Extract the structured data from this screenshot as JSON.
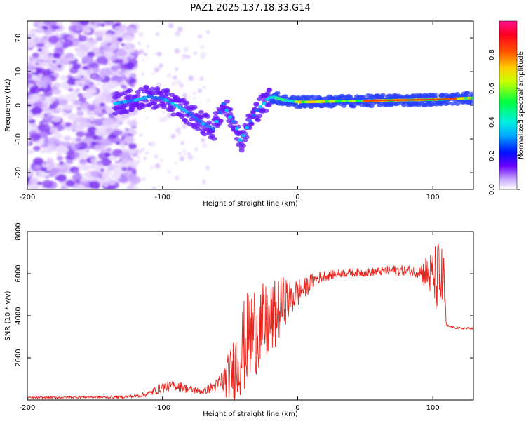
{
  "figure": {
    "title": "PAZ1.2025.137.18.33.G14",
    "colors": {
      "snr_line": "#e8241c",
      "axes": "#000000",
      "spectrogram_noise": "#8a3cf0",
      "spectrogram_signal": "#2e8bff"
    }
  },
  "chart_data": [
    {
      "type": "heatmap",
      "name": "spectrogram",
      "title": "PAZ1.2025.137.18.33.G14",
      "xlabel": "Height of straight line (km)",
      "ylabel": "Frequency (Hz)",
      "xlim": [
        -200,
        130
      ],
      "ylim": [
        -25,
        25
      ],
      "x_ticks": [
        -200,
        -100,
        0,
        100
      ],
      "y_ticks": [
        -20,
        -10,
        0,
        10,
        20
      ],
      "grid": false,
      "colorbar": {
        "label": "Normalized spectral amplitude",
        "range": [
          0,
          1
        ],
        "ticks": [
          "0.0",
          "0.2",
          "0.4",
          "0.6",
          "0.8"
        ],
        "colormap": [
          "#ffffff",
          "#b48cff",
          "#5a00ff",
          "#0000ff",
          "#00d0ff",
          "#00ff40",
          "#ffff00",
          "#ff8000",
          "#ff0000",
          "#ff0080"
        ]
      },
      "signal_track": {
        "x": [
          -135,
          -120,
          -110,
          -100,
          -90,
          -80,
          -70,
          -62,
          -55,
          -50,
          -46,
          -42,
          -38,
          -34,
          -30,
          -25,
          -22,
          -18,
          -10,
          0,
          10,
          30,
          50,
          70,
          90,
          100,
          110,
          120,
          130
        ],
        "frequency": [
          0.5,
          1.5,
          2.5,
          2.0,
          0.0,
          -2.5,
          -5.5,
          -7.0,
          0.5,
          -3.5,
          -5.5,
          -11.0,
          -7.0,
          -4.0,
          -1.5,
          0.5,
          2.0,
          2.5,
          1.5,
          1.0,
          1.0,
          1.2,
          1.3,
          1.5,
          1.6,
          1.7,
          1.8,
          2.0,
          2.2
        ]
      }
    },
    {
      "type": "line",
      "name": "snr",
      "xlabel": "Height of straight line (km)",
      "ylabel": "SNR (10 * v/v)",
      "xlim": [
        -200,
        130
      ],
      "ylim": [
        0,
        8000
      ],
      "x_ticks": [
        -200,
        -100,
        0,
        100
      ],
      "y_ticks": [
        2000,
        4000,
        6000,
        8000
      ],
      "grid": false,
      "series": [
        {
          "x": [
            -200,
            -180,
            -160,
            -140,
            -130,
            -120,
            -110,
            -100,
            -90,
            -80,
            -70,
            -60,
            -50,
            -45,
            -40,
            -35,
            -30,
            -25,
            -20,
            -15,
            -10,
            -5,
            0,
            5,
            10,
            15,
            20,
            30,
            40,
            50,
            60,
            70,
            80,
            90,
            95,
            100,
            102,
            104,
            106,
            108,
            110,
            112,
            115,
            120,
            125,
            130
          ],
          "values": [
            100,
            120,
            140,
            130,
            150,
            180,
            300,
            600,
            700,
            500,
            400,
            700,
            1200,
            1800,
            2500,
            3000,
            3500,
            3500,
            3700,
            4200,
            4700,
            4800,
            5100,
            5300,
            5600,
            5800,
            5900,
            6000,
            6050,
            6050,
            6100,
            6150,
            6150,
            6100,
            6000,
            5900,
            5800,
            5700,
            5700,
            5700,
            3500,
            3500,
            3450,
            3400,
            3400,
            3400
          ],
          "noise_amplitude": [
            60,
            60,
            60,
            60,
            70,
            80,
            150,
            250,
            250,
            200,
            150,
            300,
            1200,
            1800,
            2200,
            2500,
            2200,
            2000,
            1800,
            1600,
            1200,
            900,
            700,
            500,
            400,
            300,
            250,
            200,
            200,
            200,
            200,
            250,
            250,
            300,
            900,
            1200,
            1600,
            2000,
            1800,
            1200,
            100,
            60,
            60,
            60,
            60,
            60
          ]
        }
      ]
    }
  ]
}
